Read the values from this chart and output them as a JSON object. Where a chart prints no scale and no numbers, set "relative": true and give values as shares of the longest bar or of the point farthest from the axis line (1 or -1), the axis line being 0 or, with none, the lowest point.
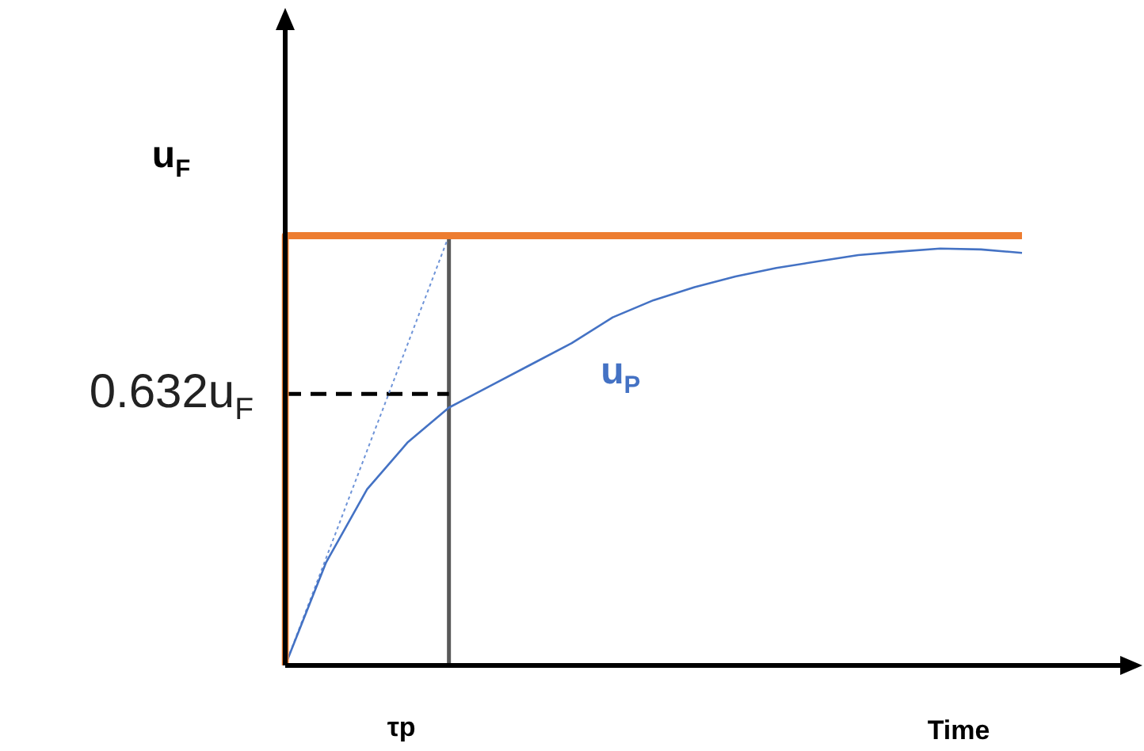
{
  "chart_data": {
    "type": "line",
    "relative": true,
    "xlabel": "Time",
    "ylabel": "u$_{F}$",
    "categories": [
      null,
      null,
      null,
      null,
      null,
      null,
      null,
      null,
      null,
      null,
      null,
      null,
      null,
      null,
      null,
      null,
      null,
      null,
      null
    ],
    "legend": false,
    "marker": "none",
    "series": [
      {
        "type": "step",
        "color": "#ed7d31",
        "values": [
          0,
          1,
          1,
          1,
          1,
          1,
          1,
          1,
          1,
          1,
          1,
          1,
          1,
          1,
          1,
          1,
          1,
          1,
          1
        ]
      },
      {
        "name": "u$_{P}$",
        "color": "#4472c4",
        "values": [
          0,
          0.24,
          0.41,
          0.52,
          0.6,
          0.65,
          0.7,
          0.75,
          0.81,
          0.85,
          0.88,
          0.905,
          0.925,
          0.94,
          0.955,
          0.963,
          0.97,
          0.968,
          0.96
        ]
      },
      {
        "color": "#6f94d8",
        "line_style": "dotted",
        "values": [
          0,
          0.25,
          0.5,
          0.75,
          1,
          null,
          null,
          null,
          null,
          null,
          null,
          null,
          null,
          null,
          null,
          null,
          null,
          null,
          null
        ]
      },
      {
        "name": "0.632u$_{F}$",
        "color": "#000000",
        "line_style": "dashed",
        "values": [
          0.632,
          0.632,
          0.632,
          0.632,
          0.632,
          null,
          null,
          null,
          null,
          null,
          null,
          null,
          null,
          null,
          null,
          null,
          null,
          null,
          null
        ]
      }
    ],
    "ref_lines": [
      {
        "axis": "x",
        "label": "τp",
        "color": "#595959"
      }
    ]
  }
}
